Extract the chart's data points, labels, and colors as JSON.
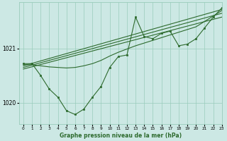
{
  "title": "Graphe pression niveau de la mer (hPa)",
  "bg_color": "#cce8e4",
  "grid_color": "#99ccbb",
  "line_color": "#2d6a2d",
  "marker_color": "#2d6a2d",
  "xlim": [
    -0.5,
    23
  ],
  "ylim": [
    1019.6,
    1021.85
  ],
  "yticks": [
    1020,
    1021
  ],
  "xticks": [
    0,
    1,
    2,
    3,
    4,
    5,
    6,
    7,
    8,
    9,
    10,
    11,
    12,
    13,
    14,
    15,
    16,
    17,
    18,
    19,
    20,
    21,
    22,
    23
  ],
  "jagged_x": [
    0,
    1,
    2,
    3,
    4,
    5,
    6,
    7,
    8,
    9,
    10,
    11,
    12,
    13,
    14,
    15,
    16,
    17,
    18,
    19,
    20,
    21,
    22,
    23
  ],
  "jagged_y": [
    1020.72,
    1020.72,
    1020.5,
    1020.25,
    1020.1,
    1019.85,
    1019.78,
    1019.88,
    1020.1,
    1020.3,
    1020.65,
    1020.85,
    1020.88,
    1021.58,
    1021.22,
    1021.18,
    1021.28,
    1021.32,
    1021.05,
    1021.08,
    1021.18,
    1021.38,
    1021.58,
    1021.75
  ],
  "trend1_x": [
    0,
    23
  ],
  "trend1_y": [
    1020.68,
    1021.72
  ],
  "trend2_x": [
    0,
    23
  ],
  "trend2_y": [
    1020.65,
    1021.65
  ],
  "trend3_x": [
    0,
    23
  ],
  "trend3_y": [
    1020.62,
    1021.58
  ],
  "smooth_x": [
    0,
    1,
    2,
    3,
    4,
    5,
    6,
    7,
    8,
    9,
    10,
    11,
    12,
    13,
    14,
    15,
    16,
    17,
    18,
    19,
    20,
    21,
    22,
    23
  ],
  "smooth_y": [
    1020.7,
    1020.7,
    1020.68,
    1020.66,
    1020.65,
    1020.64,
    1020.65,
    1020.68,
    1020.72,
    1020.78,
    1020.86,
    1020.93,
    1020.99,
    1021.05,
    1021.1,
    1021.15,
    1021.2,
    1021.25,
    1021.3,
    1021.35,
    1021.4,
    1021.5,
    1021.6,
    1021.7
  ]
}
